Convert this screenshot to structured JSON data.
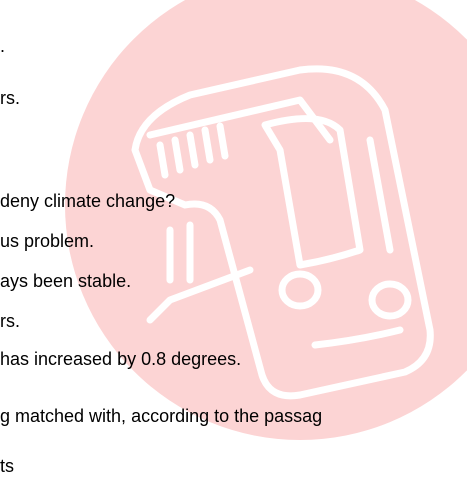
{
  "lines": [
    ".",
    "rs.",
    "deny climate change?",
    "us problem.",
    "ays been stable.",
    "rs.",
    "has increased by 0.8 degrees.",
    "g matched with, according to the passag",
    "ts"
  ]
}
